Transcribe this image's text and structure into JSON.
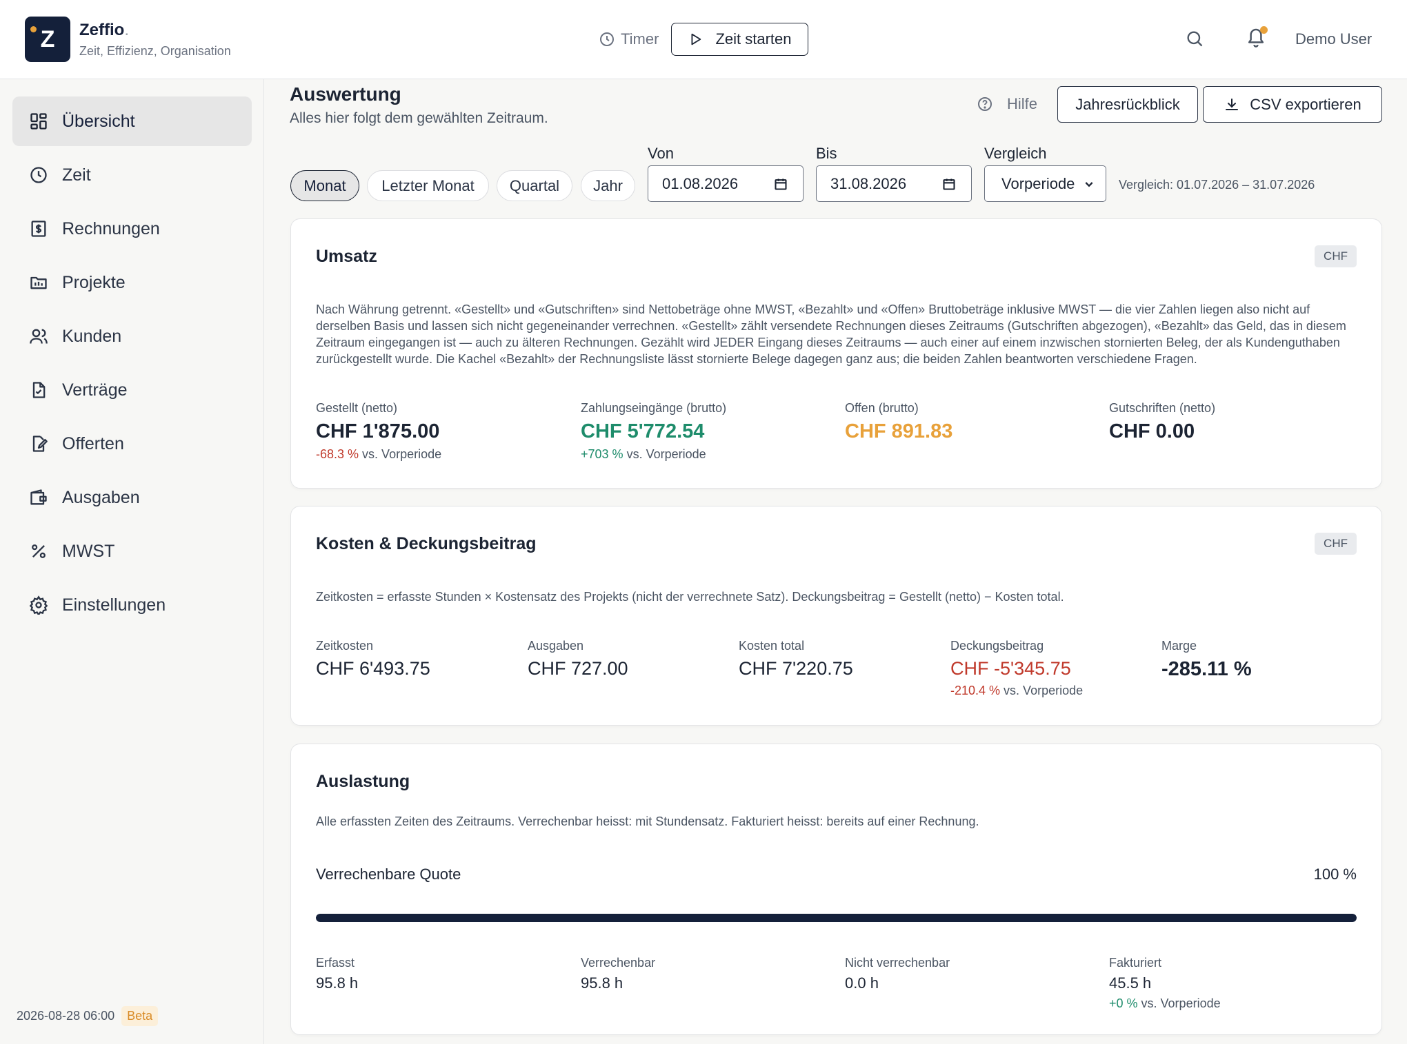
{
  "header": {
    "logo_letter": "Z",
    "brand_name": "Zeffio",
    "brand_dot": ".",
    "tagline": "Zeit, Effizienz, Organisation",
    "timer_label": "Timer",
    "start_label": "Zeit starten",
    "user_name": "Demo User",
    "notification_dot_color": "#e8a13a"
  },
  "sidebar": {
    "items": [
      {
        "label": "Übersicht",
        "icon": "dashboard-icon",
        "active": true
      },
      {
        "label": "Zeit",
        "icon": "clock-icon"
      },
      {
        "label": "Rechnungen",
        "icon": "invoice-icon"
      },
      {
        "label": "Projekte",
        "icon": "folder-icon"
      },
      {
        "label": "Kunden",
        "icon": "users-icon"
      },
      {
        "label": "Verträge",
        "icon": "contract-icon"
      },
      {
        "label": "Offerten",
        "icon": "quote-icon"
      },
      {
        "label": "Ausgaben",
        "icon": "wallet-icon"
      },
      {
        "label": "MWST",
        "icon": "percent-icon"
      },
      {
        "label": "Einstellungen",
        "icon": "gear-icon"
      }
    ],
    "timestamp": "2026-08-28 06:00",
    "beta_label": "Beta"
  },
  "page": {
    "title": "Auswertung",
    "subtitle": "Alles hier folgt dem gewählten Zeitraum.",
    "help_label": "Hilfe",
    "year_review_label": "Jahresrückblick",
    "csv_export_label": "CSV exportieren"
  },
  "filters": {
    "periods": [
      "Monat",
      "Letzter Monat",
      "Quartal",
      "Jahr"
    ],
    "active_period": "Monat",
    "from_label": "Von",
    "from_value": "01.08.2026",
    "to_label": "Bis",
    "to_value": "31.08.2026",
    "compare_label": "Vergleich",
    "compare_value": "Vorperiode",
    "compare_range": "Vergleich: 01.07.2026 – 31.07.2026"
  },
  "revenue": {
    "title": "Umsatz",
    "currency": "CHF",
    "description": "Nach Währung getrennt. «Gestellt» und «Gutschriften» sind Nettobeträge ohne MWST, «Bezahlt» und «Offen» Bruttobeträge inklusive MWST — die vier Zahlen liegen also nicht auf derselben Basis und lassen sich nicht gegeneinander verrechnen. «Gestellt» zählt versendete Rechnungen dieses Zeitraums (Gutschriften abgezogen), «Bezahlt» das Geld, das in diesem Zeitraum eingegangen ist — auch zu älteren Rechnungen. Gezählt wird JEDER Eingang dieses Zeitraums — auch einer auf einem inzwischen stornierten Beleg, der als Kundenguthaben zurückgestellt wurde. Die Kachel «Bezahlt» der Rechnungsliste lässt stornierte Belege dagegen ganz aus; die beiden Zahlen beantworten verschiedene Fragen.",
    "metrics": [
      {
        "label": "Gestellt (netto)",
        "value": "CHF 1'875.00",
        "delta": "-68.3 %",
        "delta_suffix": " vs. Vorperiode"
      },
      {
        "label": "Zahlungseingänge (brutto)",
        "value": "CHF 5'772.54",
        "delta": "+703 %",
        "delta_suffix": " vs. Vorperiode"
      },
      {
        "label": "Offen (brutto)",
        "value": "CHF 891.83"
      },
      {
        "label": "Gutschriften (netto)",
        "value": "CHF 0.00"
      }
    ]
  },
  "costs": {
    "title": "Kosten & Deckungsbeitrag",
    "currency": "CHF",
    "description": "Zeitkosten = erfasste Stunden × Kostensatz des Projekts (nicht der verrechnete Satz). Deckungsbeitrag = Gestellt (netto) − Kosten total.",
    "metrics": [
      {
        "label": "Zeitkosten",
        "value": "CHF 6'493.75"
      },
      {
        "label": "Ausgaben",
        "value": "CHF 727.00"
      },
      {
        "label": "Kosten total",
        "value": "CHF 7'220.75"
      },
      {
        "label": "Deckungsbeitrag",
        "value": "CHF -5'345.75",
        "delta": "-210.4 %",
        "delta_suffix": " vs. Vorperiode"
      },
      {
        "label": "Marge",
        "value": "-285.11 %"
      }
    ]
  },
  "utilization": {
    "title": "Auslastung",
    "description": "Alle erfassten Zeiten des Zeitraums. Verrechenbar heisst: mit Stundensatz. Fakturiert heisst: bereits auf einer Rechnung.",
    "quota_label": "Verrechenbare Quote",
    "quota_value": "100 %",
    "quota_fraction": 1.0,
    "metrics": [
      {
        "label": "Erfasst",
        "value": "95.8 h"
      },
      {
        "label": "Verrechenbar",
        "value": "95.8 h"
      },
      {
        "label": "Nicht verrechenbar",
        "value": "0.0 h"
      },
      {
        "label": "Fakturiert",
        "value": "45.5 h",
        "delta": "+0 %",
        "delta_suffix": " vs. Vorperiode"
      }
    ]
  },
  "colors": {
    "brand_dark": "#14203a",
    "accent_orange": "#e8a13a",
    "positive_teal": "#1e8c6b",
    "negative_red": "#c0392b"
  }
}
